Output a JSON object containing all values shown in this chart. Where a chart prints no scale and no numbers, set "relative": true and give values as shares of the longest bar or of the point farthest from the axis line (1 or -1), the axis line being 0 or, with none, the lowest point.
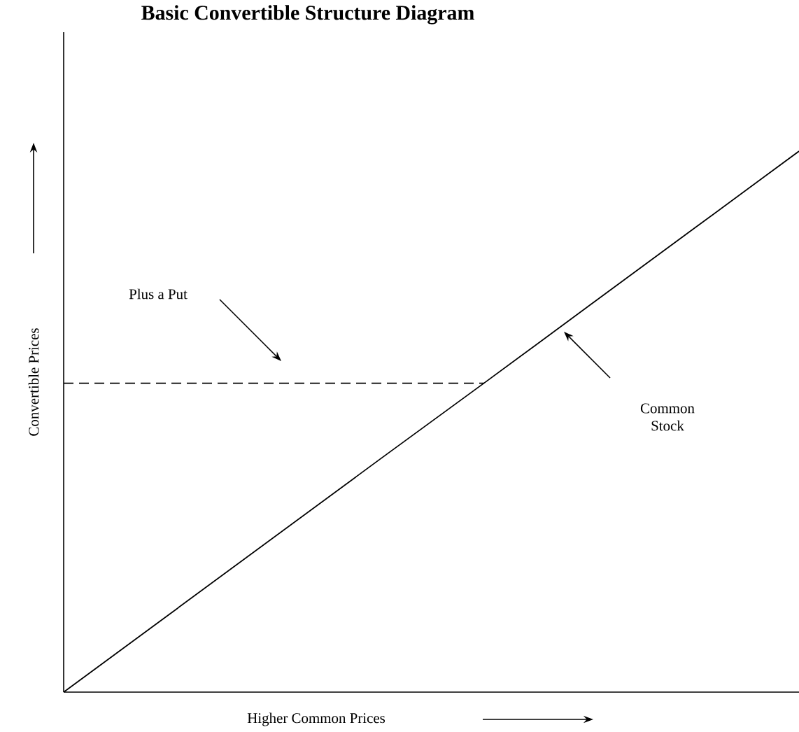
{
  "chart_data": {
    "type": "line",
    "title": "Basic Convertible Structure Diagram",
    "xlabel": "Higher Common Prices",
    "ylabel": "Convertible Prices",
    "relative": true,
    "marker": "none",
    "categories": [
      null,
      null,
      null,
      null,
      null,
      null,
      null,
      null
    ],
    "series": [
      {
        "color": "#000000",
        "line_style": "solid",
        "values": [
          0,
          0.143,
          0.286,
          0.429,
          0.571,
          0.714,
          0.857,
          1
        ]
      },
      {
        "color": "#000000",
        "line_style": "dashed",
        "values": [
          0.571,
          0.571,
          0.571,
          0.571,
          0.571,
          null,
          null,
          null
        ]
      }
    ],
    "annotations": [
      "Plus a Put",
      "Common Stock"
    ]
  }
}
